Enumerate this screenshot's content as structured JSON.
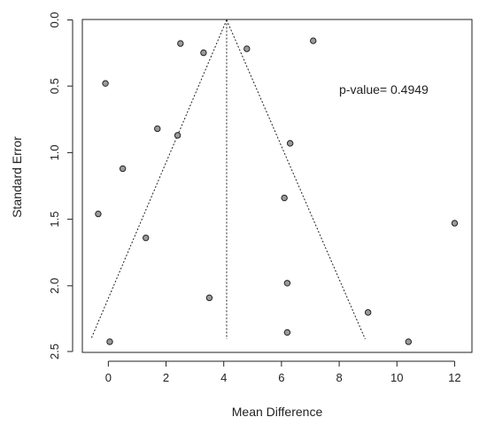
{
  "chart_data": {
    "type": "scatter",
    "title": "",
    "xlabel": "Mean Difference",
    "ylabel": "Standard Error",
    "xlim": [
      -0.9,
      12.6
    ],
    "ylim": [
      0.0,
      2.5
    ],
    "y_reversed": true,
    "x_ticks": [
      0,
      2,
      4,
      6,
      8,
      10,
      12
    ],
    "x_tick_labels": [
      "0",
      "2",
      "4",
      "6",
      "8",
      "10",
      "12"
    ],
    "y_ticks": [
      0.0,
      0.5,
      1.0,
      1.5,
      2.0,
      2.5
    ],
    "y_tick_labels": [
      "0.0",
      "0.5",
      "1.0",
      "1.5",
      "2.0",
      "2.5"
    ],
    "grid": false,
    "annotation": "p-value= 0.4949",
    "pooled_estimate": 4.1,
    "funnel": {
      "apex": [
        4.1,
        0.0
      ],
      "left_base": [
        -0.6,
        2.4
      ],
      "right_base": [
        8.9,
        2.4
      ]
    },
    "colors": {
      "point_fill": "#9a9a9a",
      "point_stroke": "#222222",
      "line": "#222222"
    },
    "points": [
      {
        "x": -0.1,
        "y": 0.48
      },
      {
        "x": 2.5,
        "y": 0.18
      },
      {
        "x": 3.3,
        "y": 0.25
      },
      {
        "x": 4.8,
        "y": 0.22
      },
      {
        "x": 7.1,
        "y": 0.16
      },
      {
        "x": 1.7,
        "y": 0.82
      },
      {
        "x": 2.4,
        "y": 0.87
      },
      {
        "x": 6.3,
        "y": 0.93
      },
      {
        "x": 0.5,
        "y": 1.12
      },
      {
        "x": -0.35,
        "y": 1.46
      },
      {
        "x": 6.1,
        "y": 1.34
      },
      {
        "x": 1.3,
        "y": 1.64
      },
      {
        "x": 12.0,
        "y": 1.53
      },
      {
        "x": 6.2,
        "y": 1.98
      },
      {
        "x": 3.5,
        "y": 2.09
      },
      {
        "x": 9.0,
        "y": 2.2
      },
      {
        "x": 6.2,
        "y": 2.35
      },
      {
        "x": 0.05,
        "y": 2.42
      },
      {
        "x": 10.4,
        "y": 2.42
      }
    ]
  }
}
